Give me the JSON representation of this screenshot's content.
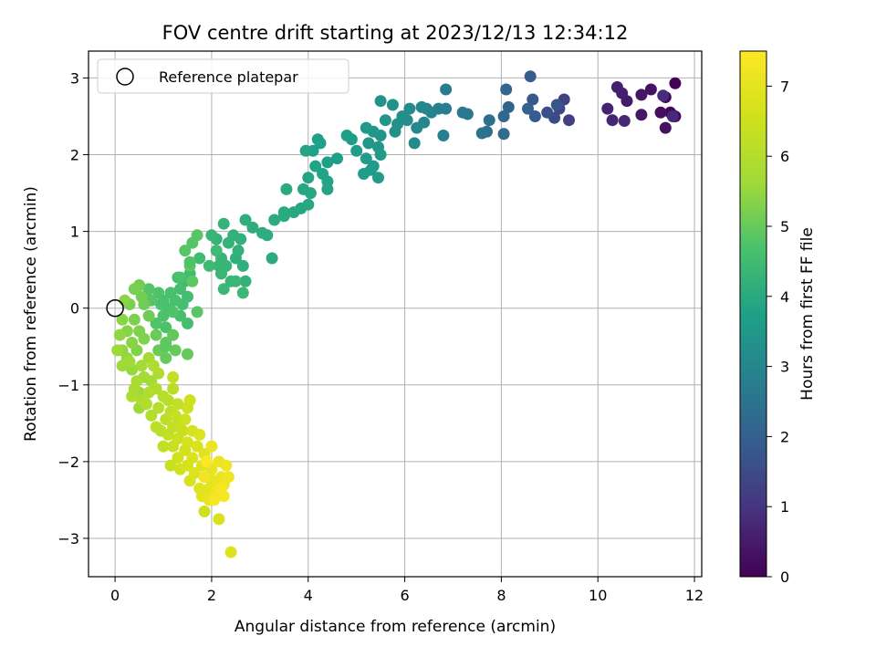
{
  "chart_data": {
    "type": "scatter",
    "title": "FOV centre drift starting at 2023/12/13 12:34:12",
    "xlabel": "Angular distance from reference (arcmin)",
    "ylabel": "Rotation from reference (arcmin)",
    "colorbar_label": "Hours from first FF file",
    "colormap": "viridis",
    "xlim": [
      -0.55,
      12.15
    ],
    "ylim": [
      -3.5,
      3.35
    ],
    "clim": [
      0,
      7.5
    ],
    "x_ticks": [
      0,
      2,
      4,
      6,
      8,
      10,
      12
    ],
    "y_ticks": [
      -3,
      -2,
      -1,
      0,
      1,
      2,
      3
    ],
    "colorbar_ticks": [
      0,
      1,
      2,
      3,
      4,
      5,
      6,
      7
    ],
    "grid": true,
    "legend": {
      "position": "top-left",
      "entries": [
        "Reference platepar"
      ]
    },
    "reference_point": {
      "x": 0,
      "y": 0,
      "name": "Reference platepar"
    },
    "points": [
      [
        11.6,
        2.93,
        0.05
      ],
      [
        11.5,
        2.55,
        0.1
      ],
      [
        11.4,
        2.75,
        0.15
      ],
      [
        11.6,
        2.5,
        0.2
      ],
      [
        11.3,
        2.55,
        0.25
      ],
      [
        11.4,
        2.35,
        0.3
      ],
      [
        11.1,
        2.85,
        0.35
      ],
      [
        10.9,
        2.78,
        0.4
      ],
      [
        10.9,
        2.52,
        0.45
      ],
      [
        10.6,
        2.7,
        0.5
      ],
      [
        10.5,
        2.8,
        0.55
      ],
      [
        10.4,
        2.88,
        0.6
      ],
      [
        10.2,
        2.6,
        0.65
      ],
      [
        10.3,
        2.45,
        0.7
      ],
      [
        10.55,
        2.44,
        0.75
      ],
      [
        11.55,
        2.5,
        0.8
      ],
      [
        11.35,
        2.77,
        0.85
      ],
      [
        9.4,
        2.45,
        1.2
      ],
      [
        9.3,
        2.72,
        1.3
      ],
      [
        9.2,
        2.6,
        1.4
      ],
      [
        9.1,
        2.48,
        1.5
      ],
      [
        8.95,
        2.55,
        1.6
      ],
      [
        9.15,
        2.65,
        1.7
      ],
      [
        8.65,
        2.72,
        1.8
      ],
      [
        8.7,
        2.5,
        1.85
      ],
      [
        8.6,
        3.02,
        1.9
      ],
      [
        8.55,
        2.6,
        2.0
      ],
      [
        8.15,
        2.62,
        2.1
      ],
      [
        8.1,
        2.85,
        2.15
      ],
      [
        8.05,
        2.5,
        2.2
      ],
      [
        8.05,
        2.27,
        2.3
      ],
      [
        7.75,
        2.45,
        2.35
      ],
      [
        7.7,
        2.3,
        2.4
      ],
      [
        7.6,
        2.28,
        2.5
      ],
      [
        7.3,
        2.53,
        2.6
      ],
      [
        7.2,
        2.55,
        2.65
      ],
      [
        6.85,
        2.85,
        2.7
      ],
      [
        6.85,
        2.6,
        2.75
      ],
      [
        6.8,
        2.25,
        2.8
      ],
      [
        6.7,
        2.6,
        2.85
      ],
      [
        6.55,
        2.55,
        2.9
      ],
      [
        6.45,
        2.6,
        2.95
      ],
      [
        6.4,
        2.42,
        3.0
      ],
      [
        6.35,
        2.62,
        3.05
      ],
      [
        6.25,
        2.35,
        3.1
      ],
      [
        6.2,
        2.15,
        3.15
      ],
      [
        6.1,
        2.6,
        3.15
      ],
      [
        6.05,
        2.45,
        3.2
      ],
      [
        5.95,
        2.5,
        3.25
      ],
      [
        5.85,
        2.4,
        3.3
      ],
      [
        5.8,
        2.3,
        3.3
      ],
      [
        5.75,
        2.65,
        3.35
      ],
      [
        5.5,
        2.7,
        3.35
      ],
      [
        5.6,
        2.45,
        3.4
      ],
      [
        5.5,
        2.25,
        3.4
      ],
      [
        5.45,
        2.1,
        3.45
      ],
      [
        5.35,
        2.3,
        3.45
      ],
      [
        5.2,
        2.35,
        3.5
      ],
      [
        5.25,
        2.15,
        3.5
      ],
      [
        5.5,
        2.0,
        3.55
      ],
      [
        5.35,
        1.85,
        3.55
      ],
      [
        5.3,
        1.8,
        3.6
      ],
      [
        5.2,
        1.95,
        3.6
      ],
      [
        5.45,
        1.7,
        3.6
      ],
      [
        5.15,
        1.75,
        3.65
      ],
      [
        5.0,
        2.05,
        3.65
      ],
      [
        4.9,
        2.2,
        3.65
      ],
      [
        4.8,
        2.25,
        3.7
      ],
      [
        4.6,
        1.95,
        3.7
      ],
      [
        4.4,
        1.9,
        3.7
      ],
      [
        4.25,
        2.15,
        3.75
      ],
      [
        4.2,
        2.2,
        3.75
      ],
      [
        4.1,
        2.05,
        3.75
      ],
      [
        4.4,
        1.65,
        3.8
      ],
      [
        4.3,
        1.75,
        3.8
      ],
      [
        4.15,
        1.85,
        3.8
      ],
      [
        4.4,
        1.55,
        3.85
      ],
      [
        3.95,
        2.05,
        3.85
      ],
      [
        4.0,
        1.7,
        3.85
      ],
      [
        4.05,
        1.5,
        3.9
      ],
      [
        3.9,
        1.55,
        3.9
      ],
      [
        3.85,
        1.3,
        3.9
      ],
      [
        4.0,
        1.35,
        3.95
      ],
      [
        3.7,
        1.25,
        3.95
      ],
      [
        3.55,
        1.55,
        4.0
      ],
      [
        3.5,
        1.2,
        4.0
      ],
      [
        3.5,
        1.25,
        4.0
      ],
      [
        3.3,
        1.15,
        4.05
      ],
      [
        3.15,
        0.95,
        4.05
      ],
      [
        3.25,
        0.65,
        4.05
      ],
      [
        3.05,
        0.98,
        4.1
      ],
      [
        2.85,
        1.05,
        4.1
      ],
      [
        2.7,
        1.15,
        4.1
      ],
      [
        2.6,
        0.9,
        4.15
      ],
      [
        2.5,
        0.65,
        4.15
      ],
      [
        2.65,
        0.55,
        4.15
      ],
      [
        2.7,
        0.35,
        4.2
      ],
      [
        2.55,
        0.75,
        4.2
      ],
      [
        2.45,
        0.95,
        4.2
      ],
      [
        2.35,
        0.85,
        4.25
      ],
      [
        2.25,
        1.1,
        4.25
      ],
      [
        2.1,
        0.9,
        4.25
      ],
      [
        2.0,
        0.95,
        4.3
      ],
      [
        2.2,
        0.65,
        4.3
      ],
      [
        2.3,
        0.55,
        4.3
      ],
      [
        2.2,
        0.45,
        4.35
      ],
      [
        2.15,
        0.55,
        4.35
      ],
      [
        2.4,
        0.35,
        4.35
      ],
      [
        2.25,
        0.25,
        4.4
      ],
      [
        2.5,
        0.35,
        4.4
      ],
      [
        2.65,
        0.2,
        4.4
      ],
      [
        2.1,
        0.75,
        4.45
      ],
      [
        1.95,
        0.55,
        4.45
      ],
      [
        1.75,
        0.65,
        4.5
      ],
      [
        1.55,
        0.45,
        4.5
      ],
      [
        1.45,
        0.35,
        4.5
      ],
      [
        1.5,
        0.15,
        4.55
      ],
      [
        1.35,
        0.25,
        4.55
      ],
      [
        1.3,
        0.4,
        4.55
      ],
      [
        1.4,
        0.05,
        4.6
      ],
      [
        1.35,
        -0.1,
        4.6
      ],
      [
        1.5,
        -0.2,
        4.6
      ],
      [
        1.25,
        0.1,
        4.65
      ],
      [
        1.15,
        0.2,
        4.65
      ],
      [
        1.1,
        0.0,
        4.65
      ],
      [
        1.0,
        -0.1,
        4.7
      ],
      [
        1.05,
        -0.25,
        4.7
      ],
      [
        0.95,
        0.05,
        4.7
      ],
      [
        1.2,
        -0.05,
        4.75
      ],
      [
        0.9,
        0.2,
        4.75
      ],
      [
        0.85,
        -0.2,
        4.75
      ],
      [
        0.75,
        0.1,
        4.8
      ],
      [
        0.7,
        0.25,
        4.8
      ],
      [
        0.65,
        0.15,
        4.8
      ],
      [
        1.45,
        0.75,
        4.85
      ],
      [
        1.7,
        0.95,
        4.85
      ],
      [
        1.55,
        0.55,
        4.9
      ],
      [
        1.6,
        0.35,
        4.9
      ],
      [
        1.2,
        -0.35,
        4.95
      ],
      [
        1.05,
        -0.45,
        4.95
      ],
      [
        1.25,
        -0.55,
        5.0
      ],
      [
        1.05,
        -0.65,
        5.0
      ],
      [
        0.9,
        -0.55,
        5.05
      ],
      [
        0.85,
        -0.35,
        5.05
      ],
      [
        0.7,
        -0.1,
        5.1
      ],
      [
        0.6,
        0.05,
        5.1
      ],
      [
        0.5,
        0.3,
        5.15
      ],
      [
        0.55,
        0.15,
        5.15
      ],
      [
        0.4,
        0.25,
        5.2
      ],
      [
        0.3,
        0.05,
        5.2
      ],
      [
        0.4,
        -0.15,
        5.25
      ],
      [
        0.5,
        -0.3,
        5.25
      ],
      [
        0.6,
        -0.4,
        5.3
      ],
      [
        0.45,
        -0.55,
        5.3
      ],
      [
        0.35,
        -0.45,
        5.35
      ],
      [
        0.25,
        -0.3,
        5.35
      ],
      [
        0.2,
        0.1,
        5.4
      ],
      [
        0.15,
        -0.15,
        5.4
      ],
      [
        0.1,
        -0.35,
        5.45
      ],
      [
        0.15,
        -0.55,
        5.45
      ],
      [
        0.25,
        -0.65,
        5.5
      ],
      [
        0.35,
        -0.8,
        5.5
      ],
      [
        0.5,
        -1.1,
        5.55
      ],
      [
        0.5,
        -1.3,
        5.6
      ],
      [
        0.05,
        -0.55,
        5.6
      ],
      [
        0.15,
        -0.75,
        5.65
      ],
      [
        0.3,
        -0.7,
        5.65
      ],
      [
        0.55,
        -0.75,
        5.7
      ],
      [
        0.6,
        -0.9,
        5.7
      ],
      [
        0.7,
        -0.65,
        5.75
      ],
      [
        0.75,
        -0.95,
        5.75
      ],
      [
        0.45,
        -0.95,
        5.8
      ],
      [
        0.4,
        -1.05,
        5.8
      ],
      [
        0.35,
        -1.15,
        5.85
      ],
      [
        0.55,
        -1.2,
        5.85
      ],
      [
        0.7,
        -1.1,
        5.9
      ],
      [
        0.8,
        -0.75,
        5.9
      ],
      [
        0.9,
        -0.85,
        5.95
      ],
      [
        0.85,
        -1.05,
        5.95
      ],
      [
        0.65,
        -1.25,
        6.0
      ],
      [
        0.75,
        -1.4,
        6.0
      ],
      [
        0.9,
        -1.3,
        6.05
      ],
      [
        1.0,
        -1.15,
        6.05
      ],
      [
        1.1,
        -1.2,
        6.1
      ],
      [
        1.2,
        -1.05,
        6.1
      ],
      [
        0.85,
        -1.55,
        6.15
      ],
      [
        0.95,
        -1.6,
        6.15
      ],
      [
        1.05,
        -1.45,
        6.2
      ],
      [
        1.15,
        -1.35,
        6.2
      ],
      [
        1.3,
        -1.25,
        6.25
      ],
      [
        1.0,
        -1.8,
        6.25
      ],
      [
        1.1,
        -1.65,
        6.3
      ],
      [
        1.2,
        -1.55,
        6.3
      ],
      [
        1.35,
        -1.5,
        6.35
      ],
      [
        1.25,
        -1.4,
        6.35
      ],
      [
        1.15,
        -2.05,
        6.4
      ],
      [
        1.2,
        -1.8,
        6.4
      ],
      [
        1.3,
        -1.7,
        6.45
      ],
      [
        1.4,
        -1.6,
        6.45
      ],
      [
        1.45,
        -1.45,
        6.5
      ],
      [
        1.5,
        -1.3,
        6.5
      ],
      [
        1.55,
        -1.2,
        6.55
      ],
      [
        1.3,
        -1.95,
        6.55
      ],
      [
        1.35,
        -2.1,
        6.6
      ],
      [
        1.45,
        -1.85,
        6.6
      ],
      [
        1.5,
        -1.75,
        6.65
      ],
      [
        1.6,
        -1.6,
        6.65
      ],
      [
        1.55,
        -2.25,
        6.7
      ],
      [
        1.5,
        -2.05,
        6.7
      ],
      [
        1.6,
        -1.95,
        6.75
      ],
      [
        1.7,
        -1.8,
        6.75
      ],
      [
        1.75,
        -1.65,
        6.8
      ],
      [
        1.65,
        -2.15,
        6.8
      ],
      [
        1.75,
        -2.35,
        6.85
      ],
      [
        1.8,
        -2.05,
        6.85
      ],
      [
        1.85,
        -1.9,
        6.9
      ],
      [
        1.9,
        -2.2,
        6.9
      ],
      [
        1.8,
        -2.45,
        6.95
      ],
      [
        1.95,
        -2.35,
        6.95
      ],
      [
        2.0,
        -2.1,
        7.0
      ],
      [
        2.05,
        -2.25,
        7.0
      ],
      [
        1.95,
        -2.5,
        7.05
      ],
      [
        2.1,
        -2.3,
        7.05
      ],
      [
        2.15,
        -2.0,
        7.1
      ],
      [
        2.2,
        -2.2,
        7.1
      ],
      [
        2.25,
        -2.3,
        7.15
      ],
      [
        2.0,
        -1.8,
        7.15
      ],
      [
        2.3,
        -2.05,
        7.2
      ],
      [
        2.35,
        -2.2,
        7.2
      ],
      [
        2.1,
        -2.4,
        7.25
      ],
      [
        1.85,
        -2.2,
        7.25
      ],
      [
        2.25,
        -2.45,
        7.3
      ],
      [
        2.05,
        -2.5,
        7.35
      ],
      [
        2.2,
        -2.35,
        7.4
      ],
      [
        1.9,
        -2.0,
        7.45
      ],
      [
        1.2,
        -0.9,
        6.3
      ],
      [
        1.85,
        -2.65,
        6.5
      ],
      [
        2.15,
        -2.75,
        6.7
      ],
      [
        2.4,
        -3.18,
        6.8
      ],
      [
        1.5,
        -0.6,
        5.0
      ],
      [
        1.05,
        -0.5,
        4.9
      ],
      [
        1.7,
        -0.05,
        4.85
      ],
      [
        1.35,
        0.4,
        4.7
      ],
      [
        1.55,
        0.6,
        4.75
      ],
      [
        1.6,
        0.85,
        4.8
      ],
      [
        1.0,
        0.1,
        4.65
      ]
    ]
  }
}
